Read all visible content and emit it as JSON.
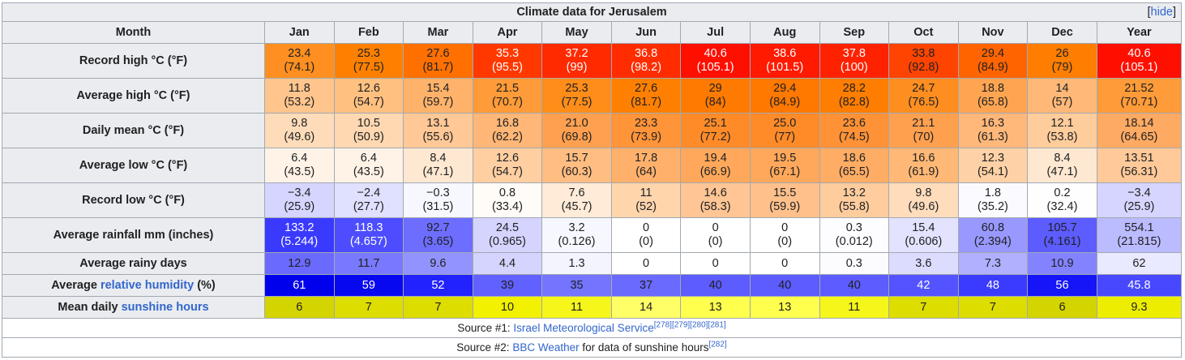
{
  "title": "Climate data for Jerusalem",
  "hide_label": "hide",
  "header": {
    "month_label": "Month",
    "months": [
      "Jan",
      "Feb",
      "Mar",
      "Apr",
      "May",
      "Jun",
      "Jul",
      "Aug",
      "Sep",
      "Oct",
      "Nov",
      "Dec"
    ],
    "year_label": "Year"
  },
  "rows": [
    {
      "label": "Record high °C (°F)",
      "two_line": true,
      "values": [
        "23.4",
        "25.3",
        "27.6",
        "35.3",
        "37.2",
        "36.8",
        "40.6",
        "38.6",
        "37.8",
        "33.8",
        "29.4",
        "26",
        "40.6"
      ],
      "secondary": [
        "(74.1)",
        "(77.5)",
        "(81.7)",
        "(95.5)",
        "(99)",
        "(98.2)",
        "(105.1)",
        "(101.5)",
        "(100)",
        "(92.8)",
        "(84.9)",
        "(79)",
        "(105.1)"
      ],
      "colors": [
        "#ff8f20",
        "#ff8000",
        "#ff7000",
        "#ff3800",
        "#ff2a00",
        "#ff2c00",
        "#ff0f00",
        "#ff1a00",
        "#ff2200",
        "#ff4300",
        "#ff6400",
        "#ff7d00",
        "#ff0f00"
      ]
    },
    {
      "label": "Average high °C (°F)",
      "two_line": true,
      "values": [
        "11.8",
        "12.6",
        "15.4",
        "21.5",
        "25.3",
        "27.6",
        "29",
        "29.4",
        "28.2",
        "24.7",
        "18.8",
        "14",
        "21.52"
      ],
      "secondary": [
        "(53.2)",
        "(54.7)",
        "(59.7)",
        "(70.7)",
        "(77.5)",
        "(81.7)",
        "(84)",
        "(84.9)",
        "(82.8)",
        "(76.5)",
        "(65.8)",
        "(57)",
        "(70.71)"
      ],
      "colors": [
        "#ffc58c",
        "#ffc080",
        "#ffb36a",
        "#ff9b38",
        "#ff8d1a",
        "#ff8000",
        "#ff7a00",
        "#ff7800",
        "#ff7d00",
        "#ff8e20",
        "#ffa552",
        "#ffb877",
        "#ff9b38"
      ]
    },
    {
      "label": "Daily mean °C (°F)",
      "two_line": true,
      "values": [
        "9.8",
        "10.5",
        "13.1",
        "16.8",
        "21.0",
        "23.3",
        "25.1",
        "25.0",
        "23.6",
        "21.1",
        "16.3",
        "12.1",
        "18.14"
      ],
      "secondary": [
        "(49.6)",
        "(50.9)",
        "(55.6)",
        "(62.2)",
        "(69.8)",
        "(73.9)",
        "(77.2)",
        "(77)",
        "(74.5)",
        "(70)",
        "(61.3)",
        "(53.8)",
        "(64.65)"
      ],
      "colors": [
        "#ffdcb9",
        "#ffd8b1",
        "#ffc896",
        "#ffb676",
        "#ffa050",
        "#ff9439",
        "#ff8b28",
        "#ff8b28",
        "#ff9236",
        "#ffa04f",
        "#ffb77a",
        "#ffcc9c",
        "#ffaa63"
      ]
    },
    {
      "label": "Average low °C (°F)",
      "two_line": true,
      "values": [
        "6.4",
        "6.4",
        "8.4",
        "12.6",
        "15.7",
        "17.8",
        "19.4",
        "19.5",
        "18.6",
        "16.6",
        "12.3",
        "8.4",
        "13.51"
      ],
      "secondary": [
        "(43.5)",
        "(43.5)",
        "(47.1)",
        "(54.7)",
        "(60.3)",
        "(64)",
        "(66.9)",
        "(67.1)",
        "(65.5)",
        "(61.9)",
        "(54.1)",
        "(47.1)",
        "(56.31)"
      ],
      "colors": [
        "#fff3e7",
        "#fff3e7",
        "#ffe8d2",
        "#ffcfa2",
        "#ffbd81",
        "#ffb16c",
        "#ffa85b",
        "#ffa85b",
        "#ffad64",
        "#ffb875",
        "#ffd1a6",
        "#ffe8d2",
        "#ffc999"
      ]
    },
    {
      "label": "Record low °C (°F)",
      "two_line": true,
      "values": [
        "−3.4",
        "−2.4",
        "−0.3",
        "0.8",
        "7.6",
        "11",
        "14.6",
        "15.5",
        "13.2",
        "9.8",
        "1.8",
        "0.2",
        "−3.4"
      ],
      "secondary": [
        "(25.9)",
        "(27.7)",
        "(31.5)",
        "(33.4)",
        "(45.7)",
        "(52)",
        "(58.3)",
        "(59.9)",
        "(55.8)",
        "(49.6)",
        "(35.2)",
        "(32.4)",
        "(25.9)"
      ],
      "colors": [
        "#d5d5ff",
        "#e0e0ff",
        "#f7f7ff",
        "#fffbf7",
        "#ffebd7",
        "#ffd5ac",
        "#ffc594",
        "#ffc08b",
        "#ffcc9e",
        "#ffdcbc",
        "#fbfbff",
        "#fefeff",
        "#d5d5ff"
      ]
    },
    {
      "label": "Average rainfall mm (inches)",
      "two_line": true,
      "values": [
        "133.2",
        "118.3",
        "92.7",
        "24.5",
        "3.2",
        "0",
        "0",
        "0",
        "0.3",
        "15.4",
        "60.8",
        "105.7",
        "554.1"
      ],
      "secondary": [
        "(5.244)",
        "(4.657)",
        "(3.65)",
        "(0.965)",
        "(0.126)",
        "(0)",
        "(0)",
        "(0)",
        "(0.012)",
        "(0.606)",
        "(2.394)",
        "(4.161)",
        "(21.815)"
      ],
      "colors": [
        "#3a3aff",
        "#4d4dff",
        "#6d6dff",
        "#d4d4ff",
        "#f7f7ff",
        "#ffffff",
        "#ffffff",
        "#ffffff",
        "#fdfdff",
        "#e3e3ff",
        "#9898ff",
        "#5c5cff",
        "#bbbbff"
      ]
    },
    {
      "label": "Average rainy days",
      "two_line": false,
      "values": [
        "12.9",
        "11.7",
        "9.6",
        "4.4",
        "1.3",
        "0",
        "0",
        "0",
        "0.3",
        "3.6",
        "7.3",
        "10.9",
        "62"
      ],
      "colors": [
        "#6a6aff",
        "#7979ff",
        "#9393ff",
        "#d4d4ff",
        "#f4f4ff",
        "#ffffff",
        "#ffffff",
        "#ffffff",
        "#fcfcff",
        "#dcdcff",
        "#b0b0ff",
        "#8383ff",
        "#e9e9ff"
      ]
    },
    {
      "label_prefix": "Average ",
      "label_link": "relative humidity",
      "label_suffix": " (%)",
      "two_line": false,
      "values": [
        "61",
        "59",
        "52",
        "39",
        "35",
        "37",
        "40",
        "40",
        "40",
        "42",
        "48",
        "56",
        "45.8"
      ],
      "colors": [
        "#0000ec",
        "#0808f0",
        "#2222ff",
        "#6161ff",
        "#7474ff",
        "#6a6aff",
        "#5c5cff",
        "#5c5cff",
        "#5c5cff",
        "#5353ff",
        "#3b3bff",
        "#1515f8",
        "#4848ff"
      ]
    },
    {
      "label_prefix": "Mean daily ",
      "label_link": "sunshine hours",
      "label_suffix": "",
      "two_line": false,
      "values": [
        "6",
        "7",
        "7",
        "10",
        "11",
        "14",
        "13",
        "13",
        "11",
        "7",
        "7",
        "6",
        "9.3"
      ],
      "colors": [
        "#d4d400",
        "#dddd00",
        "#dddd00",
        "#f1f100",
        "#f6f61a",
        "#ffff66",
        "#ffff4d",
        "#ffff4d",
        "#f6f61a",
        "#dddd00",
        "#dddd00",
        "#d4d400",
        "#eded00"
      ]
    }
  ],
  "sources": [
    {
      "prefix": "Source #1: ",
      "link": "Israel Meteorological Service",
      "suffix": "",
      "refs": "[278][279][280][281]"
    },
    {
      "prefix": "Source #2: ",
      "link": "BBC Weather",
      "suffix": " for data of sunshine hours",
      "refs": "[282]"
    }
  ]
}
